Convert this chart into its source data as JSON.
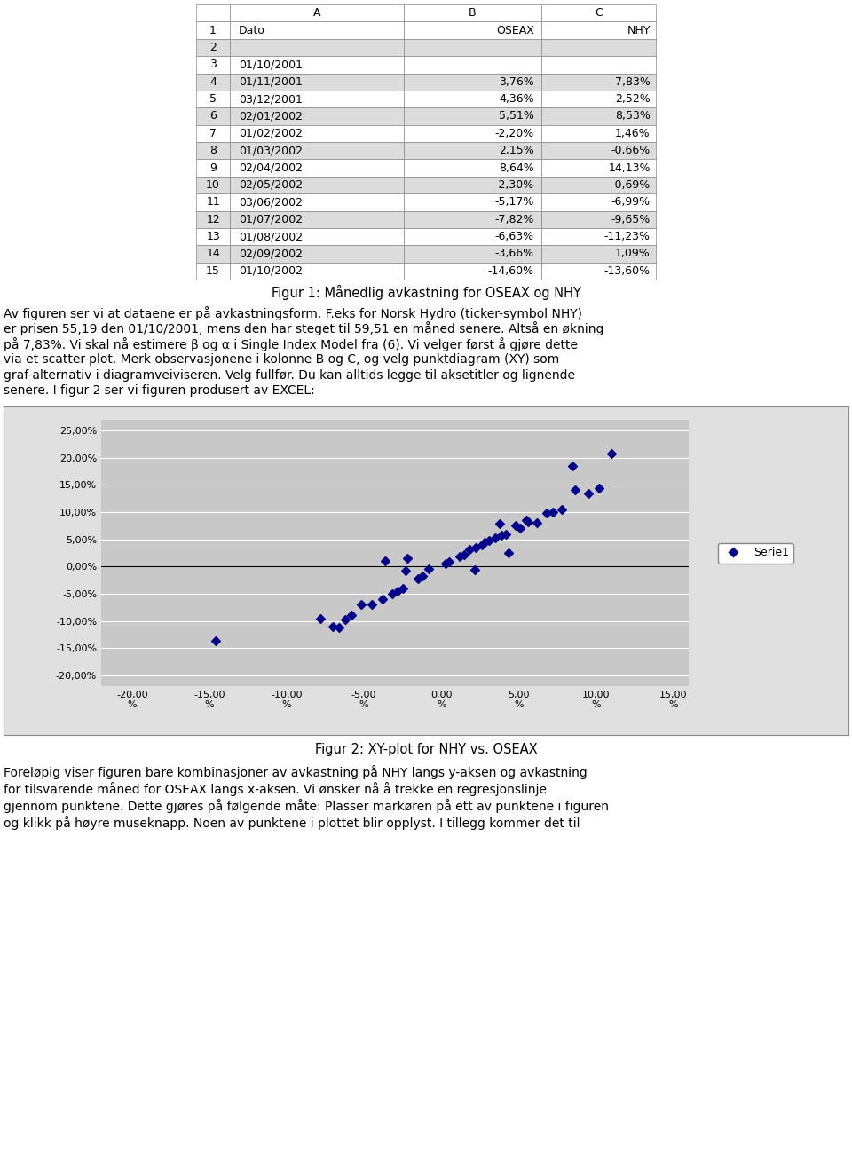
{
  "table": {
    "col_headers": [
      "",
      "A",
      "B",
      "C"
    ],
    "rows": [
      [
        "1",
        "Dato",
        "OSEAX",
        "NHY"
      ],
      [
        "2",
        "",
        "",
        ""
      ],
      [
        "3",
        "01/10/2001",
        "",
        ""
      ],
      [
        "4",
        "01/11/2001",
        "3,76%",
        "7,83%"
      ],
      [
        "5",
        "03/12/2001",
        "4,36%",
        "2,52%"
      ],
      [
        "6",
        "02/01/2002",
        "5,51%",
        "8,53%"
      ],
      [
        "7",
        "01/02/2002",
        "-2,20%",
        "1,46%"
      ],
      [
        "8",
        "01/03/2002",
        "2,15%",
        "-0,66%"
      ],
      [
        "9",
        "02/04/2002",
        "8,64%",
        "14,13%"
      ],
      [
        "10",
        "02/05/2002",
        "-2,30%",
        "-0,69%"
      ],
      [
        "11",
        "03/06/2002",
        "-5,17%",
        "-6,99%"
      ],
      [
        "12",
        "01/07/2002",
        "-7,82%",
        "-9,65%"
      ],
      [
        "13",
        "01/08/2002",
        "-6,63%",
        "-11,23%"
      ],
      [
        "14",
        "02/09/2002",
        "-3,66%",
        "1,09%"
      ],
      [
        "15",
        "01/10/2002",
        "-14,60%",
        "-13,60%"
      ]
    ]
  },
  "fig1_caption": "Figur 1: Månedlig avkastning for OSEAX og NHY",
  "text_paragraph1_lines": [
    "Av figuren ser vi at dataene er på avkastningsform. F.eks for Norsk Hydro (ticker-symbol NHY)",
    "er prisen 55,19 den 01/10/2001, mens den har steget til 59,51 en måned senere. Altså en økning",
    "på 7,83%. Vi skal nå estimere β og α i Single Index Model fra (6). Vi velger først å gjøre dette",
    "via et scatter-plot. Merk observasjonene i kolonne B og C, og velg __punktdiagram (XY)__ som",
    "graf-alternativ i diagramveiviseren. Velg __fullfør__. Du kan alltids legge til aksetitler og lignende",
    "senere. I figur 2 ser vi figuren produsert av EXCEL:"
  ],
  "scatter_x": [
    3.76,
    4.36,
    5.51,
    -2.2,
    2.15,
    8.64,
    -2.3,
    -5.17,
    -7.82,
    -6.63,
    -3.66,
    -14.6,
    1.5,
    2.8,
    -1.2,
    3.5,
    6.2,
    7.8,
    9.5,
    10.2,
    11.0,
    8.5,
    4.8,
    5.6,
    0.5,
    1.8,
    -0.8,
    -3.2,
    -4.5,
    2.2,
    3.1,
    -2.8,
    -1.5,
    0.3,
    6.8,
    7.2,
    -5.8,
    -6.2,
    -7.0,
    4.2,
    5.1,
    3.9,
    -3.8,
    -2.5,
    1.2,
    2.6
  ],
  "scatter_y": [
    7.83,
    2.52,
    8.53,
    1.46,
    -0.66,
    14.13,
    -0.69,
    -6.99,
    -9.65,
    -11.23,
    1.09,
    -13.6,
    2.1,
    4.5,
    -1.8,
    5.2,
    8.0,
    10.5,
    13.5,
    14.5,
    20.8,
    18.5,
    7.5,
    8.2,
    0.8,
    3.2,
    -0.5,
    -5.0,
    -7.0,
    3.5,
    4.8,
    -4.5,
    -2.2,
    0.5,
    9.8,
    10.0,
    -9.0,
    -9.8,
    -11.0,
    6.0,
    7.0,
    5.8,
    -6.0,
    -4.0,
    1.8,
    4.0
  ],
  "scatter_color": "#00008B",
  "fig2_caption": "Figur 2: XY-plot for NHY vs. OSEAX",
  "text_paragraph2_lines": [
    "Foreløpig viser figuren bare kombinasjoner av avkastning på NHY langs y-aksen og avkastning",
    "for tilsvarende måned for OSEAX langs x-aksen. Vi ønsker nå å trekke en regresjonslinje",
    "gjennom punktene. Dette gjøres på følgende måte: Plasser markøren på ett av punktene i figuren",
    "og klikk på høyre museknapp. Noen av punktene i plottet blir opplyst. I tillegg kommer det til"
  ],
  "plot_bg_color": "#C8C8C8",
  "plot_outer_bg": "#E0E0E0",
  "x_ticks": [
    -20,
    -15,
    -10,
    -5,
    0,
    5,
    10,
    15
  ],
  "y_ticks": [
    -20,
    -15,
    -10,
    -5,
    0,
    5,
    10,
    15,
    20,
    25
  ],
  "legend_label": "Serie1",
  "row_colors_even": "#FFFFFF",
  "row_colors_odd": "#DCDCDC",
  "header_bg": "#FFFFFF"
}
